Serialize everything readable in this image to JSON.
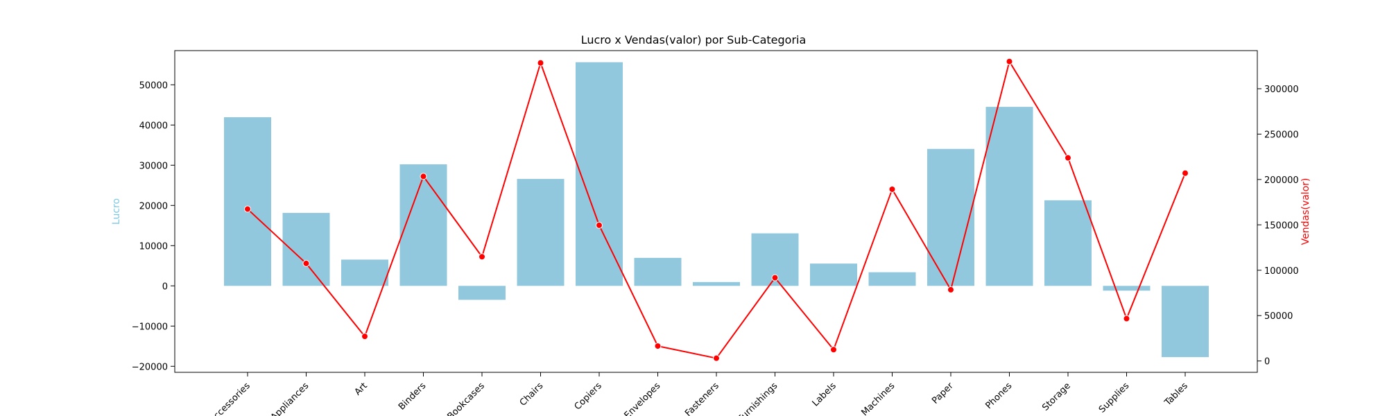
{
  "chart_data": {
    "type": "bar",
    "title": "Lucro x Vendas(valor) por Sub-Categoria",
    "xlabel": "",
    "categories": [
      "Accessories",
      "Appliances",
      "Art",
      "Binders",
      "Bookcases",
      "Chairs",
      "Copiers",
      "Envelopes",
      "Fasteners",
      "Furnishings",
      "Labels",
      "Machines",
      "Paper",
      "Phones",
      "Storage",
      "Supplies",
      "Tables"
    ],
    "series": [
      {
        "name": "Lucro",
        "type": "bar",
        "axis": "left",
        "color": "#92c8dd",
        "values": [
          41937,
          18138,
          6528,
          30222,
          -3473,
          26590,
          55618,
          6964,
          950,
          13059,
          5546,
          3385,
          34054,
          44516,
          21279,
          -1189,
          -17725
        ]
      },
      {
        "name": "Vendas(valor)",
        "type": "line",
        "axis": "right",
        "color": "#ff0000",
        "values": [
          167380,
          107532,
          27119,
          203413,
          114880,
          328449,
          149528,
          16476,
          3024,
          91705,
          12486,
          189239,
          78479,
          330007,
          223844,
          46674,
          206966
        ]
      }
    ],
    "ylabel": "Lucro",
    "ylabel_color": "#7ec8e3",
    "ylim": [
      -21500,
      58500
    ],
    "yticks": [
      -20000,
      -10000,
      0,
      10000,
      20000,
      30000,
      40000,
      50000
    ],
    "ytick_labels": [
      "−20000",
      "−10000",
      "0",
      "10000",
      "20000",
      "30000",
      "40000",
      "50000"
    ],
    "y2label": "Vendas(valor)",
    "y2label_color": "#ff0000",
    "y2lim": [
      -12500,
      342000
    ],
    "y2ticks": [
      0,
      50000,
      100000,
      150000,
      200000,
      250000,
      300000
    ],
    "y2tick_labels": [
      "0",
      "50000",
      "100000",
      "150000",
      "200000",
      "250000",
      "300000"
    ],
    "grid": false,
    "legend": "none"
  }
}
